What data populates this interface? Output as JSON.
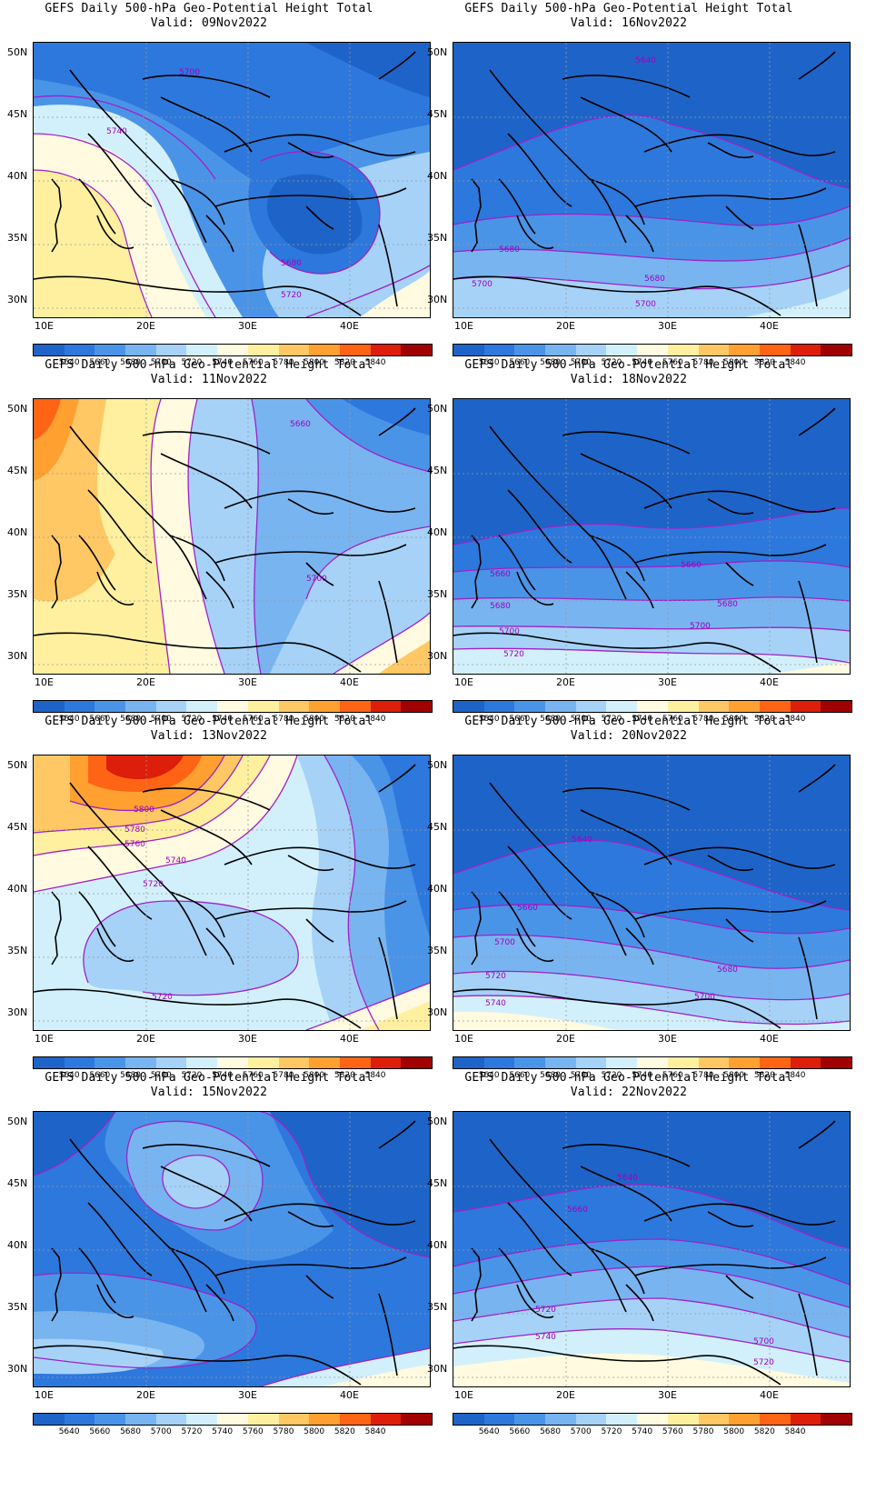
{
  "title": "GEFS Daily 500-hPa Geo-Potential Height Total",
  "panels": [
    {
      "valid": "Valid: 09Nov2022",
      "scheme": "p09"
    },
    {
      "valid": "Valid: 16Nov2022",
      "scheme": "p16"
    },
    {
      "valid": "Valid: 11Nov2022",
      "scheme": "p11"
    },
    {
      "valid": "Valid: 18Nov2022",
      "scheme": "p18"
    },
    {
      "valid": "Valid: 13Nov2022",
      "scheme": "p13"
    },
    {
      "valid": "Valid: 20Nov2022",
      "scheme": "p20"
    },
    {
      "valid": "Valid: 15Nov2022",
      "scheme": "p15"
    },
    {
      "valid": "Valid: 22Nov2022",
      "scheme": "p22"
    }
  ],
  "lat_labels": [
    "50N",
    "45N",
    "40N",
    "35N",
    "30N"
  ],
  "lon_labels": [
    "10E",
    "20E",
    "30E",
    "40E"
  ],
  "colorbar": {
    "labels": [
      "5640",
      "5660",
      "5680",
      "5700",
      "5720",
      "5740",
      "5760",
      "5780",
      "5800",
      "5820",
      "5840"
    ],
    "colors": [
      "#1e64c8",
      "#2d78dc",
      "#4a94e8",
      "#78b4f0",
      "#a6d2f8",
      "#d2f0fc",
      "#fffae0",
      "#fff0a0",
      "#ffc864",
      "#ffa030",
      "#ff6414",
      "#dc1e0a",
      "#a00000"
    ]
  },
  "contour_labels": {
    "p09": [
      "5700",
      "5740",
      "5680",
      "5720"
    ],
    "p16": [
      "5640",
      "5680",
      "5680",
      "5700",
      "5700"
    ],
    "p11": [
      "5660",
      "5700"
    ],
    "p18": [
      "5660",
      "5660",
      "5680",
      "5680",
      "5700",
      "5700",
      "5720"
    ],
    "p13": [
      "5800",
      "5780",
      "5760",
      "5740",
      "5720",
      "5720"
    ],
    "p20": [
      "5640",
      "5660",
      "5700",
      "5680",
      "5720",
      "5700",
      "5740"
    ],
    "p15": [],
    "p22": [
      "5640",
      "5660",
      "5720",
      "5740",
      "5700",
      "5720"
    ]
  }
}
